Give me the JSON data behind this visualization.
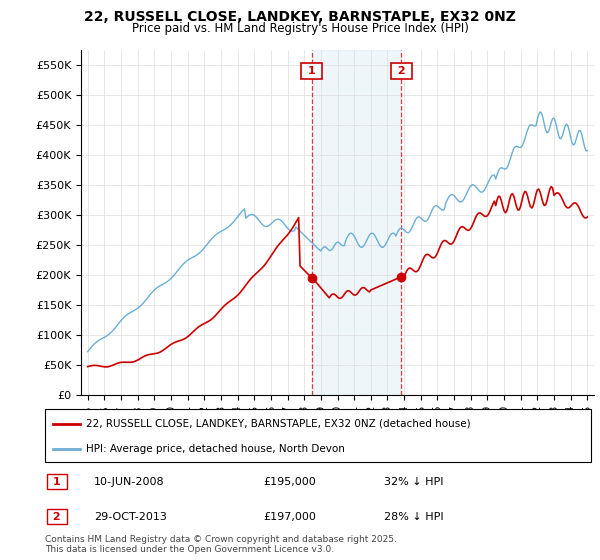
{
  "title": "22, RUSSELL CLOSE, LANDKEY, BARNSTAPLE, EX32 0NZ",
  "subtitle": "Price paid vs. HM Land Registry's House Price Index (HPI)",
  "purchase1_date": "10-JUN-2008",
  "purchase1_price": 195000,
  "purchase1_pct": "32% ↓ HPI",
  "purchase2_date": "29-OCT-2013",
  "purchase2_price": 197000,
  "purchase2_pct": "28% ↓ HPI",
  "legend1": "22, RUSSELL CLOSE, LANDKEY, BARNSTAPLE, EX32 0NZ (detached house)",
  "legend2": "HPI: Average price, detached house, North Devon",
  "footnote": "Contains HM Land Registry data © Crown copyright and database right 2025.\nThis data is licensed under the Open Government Licence v3.0.",
  "hpi_color": "#6baed6",
  "price_color": "#cc0000",
  "vline_color": "#cc0000",
  "purchase1_year": 2008.44,
  "purchase2_year": 2013.83,
  "ylim_min": 0,
  "ylim_max": 575000,
  "yticks": [
    0,
    50000,
    100000,
    150000,
    200000,
    250000,
    300000,
    350000,
    400000,
    450000,
    500000,
    550000
  ]
}
